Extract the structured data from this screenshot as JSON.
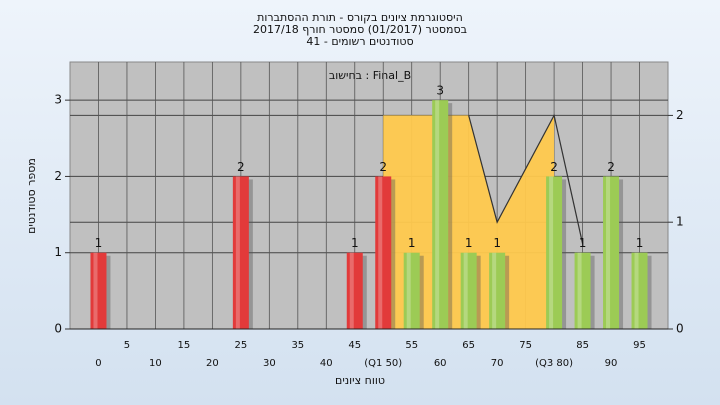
{
  "chart_data": {
    "type": "bar",
    "title_lines": [
      "היסטוגרמת ציונים בקורס - תורת ההסתברות",
      "בסמסטר  (01/2017)  סמסטר חורף 2017/18",
      "סטודנטים רשומים - 41"
    ],
    "annotation": "בחישוב : Final_B",
    "y_label": "מספר סטודנטים",
    "x_label": "טווח ציונים",
    "categories": [
      "0",
      "5",
      "10",
      "15",
      "20",
      "25",
      "30",
      "35",
      "40",
      "45",
      "(Q1 50)",
      "55",
      "60",
      "65",
      "70",
      "75",
      "(Q3 80)",
      "85",
      "90",
      "95"
    ],
    "series": [
      {
        "values": [
          1,
          0,
          0,
          0,
          0,
          2,
          0,
          0,
          0,
          1,
          2,
          1,
          3,
          1,
          1,
          0,
          2,
          1,
          2,
          1
        ],
        "colors": [
          "#e23a3a",
          "#e23a3a",
          "#e23a3a",
          "#e23a3a",
          "#e23a3a",
          "#e23a3a",
          "#e23a3a",
          "#e23a3a",
          "#e23a3a",
          "#e23a3a",
          "#e23a3a",
          "#9ccb55",
          "#9ccb55",
          "#9ccb55",
          "#9ccb55",
          "#9ccb55",
          "#9ccb55",
          "#9ccb55",
          "#9ccb55",
          "#9ccb55"
        ]
      },
      {
        "kind": "area",
        "axis": "y2",
        "color": "#ffc94d",
        "values": [
          null,
          null,
          null,
          null,
          null,
          null,
          null,
          null,
          null,
          null,
          2,
          2,
          2,
          2,
          1,
          1.5,
          2,
          null,
          null,
          null
        ]
      },
      {
        "kind": "line",
        "axis": "y2",
        "color": "#333333",
        "values": [
          null,
          null,
          null,
          null,
          null,
          null,
          null,
          null,
          null,
          null,
          null,
          null,
          null,
          2,
          1,
          1.5,
          2,
          0.8,
          null,
          null
        ]
      }
    ],
    "ylim": [
      0,
      3.5
    ],
    "yticks": [
      0,
      1,
      2,
      3
    ],
    "y2lim": [
      0,
      2.5
    ],
    "y2ticks": [
      0,
      1,
      2
    ],
    "grid": true
  }
}
